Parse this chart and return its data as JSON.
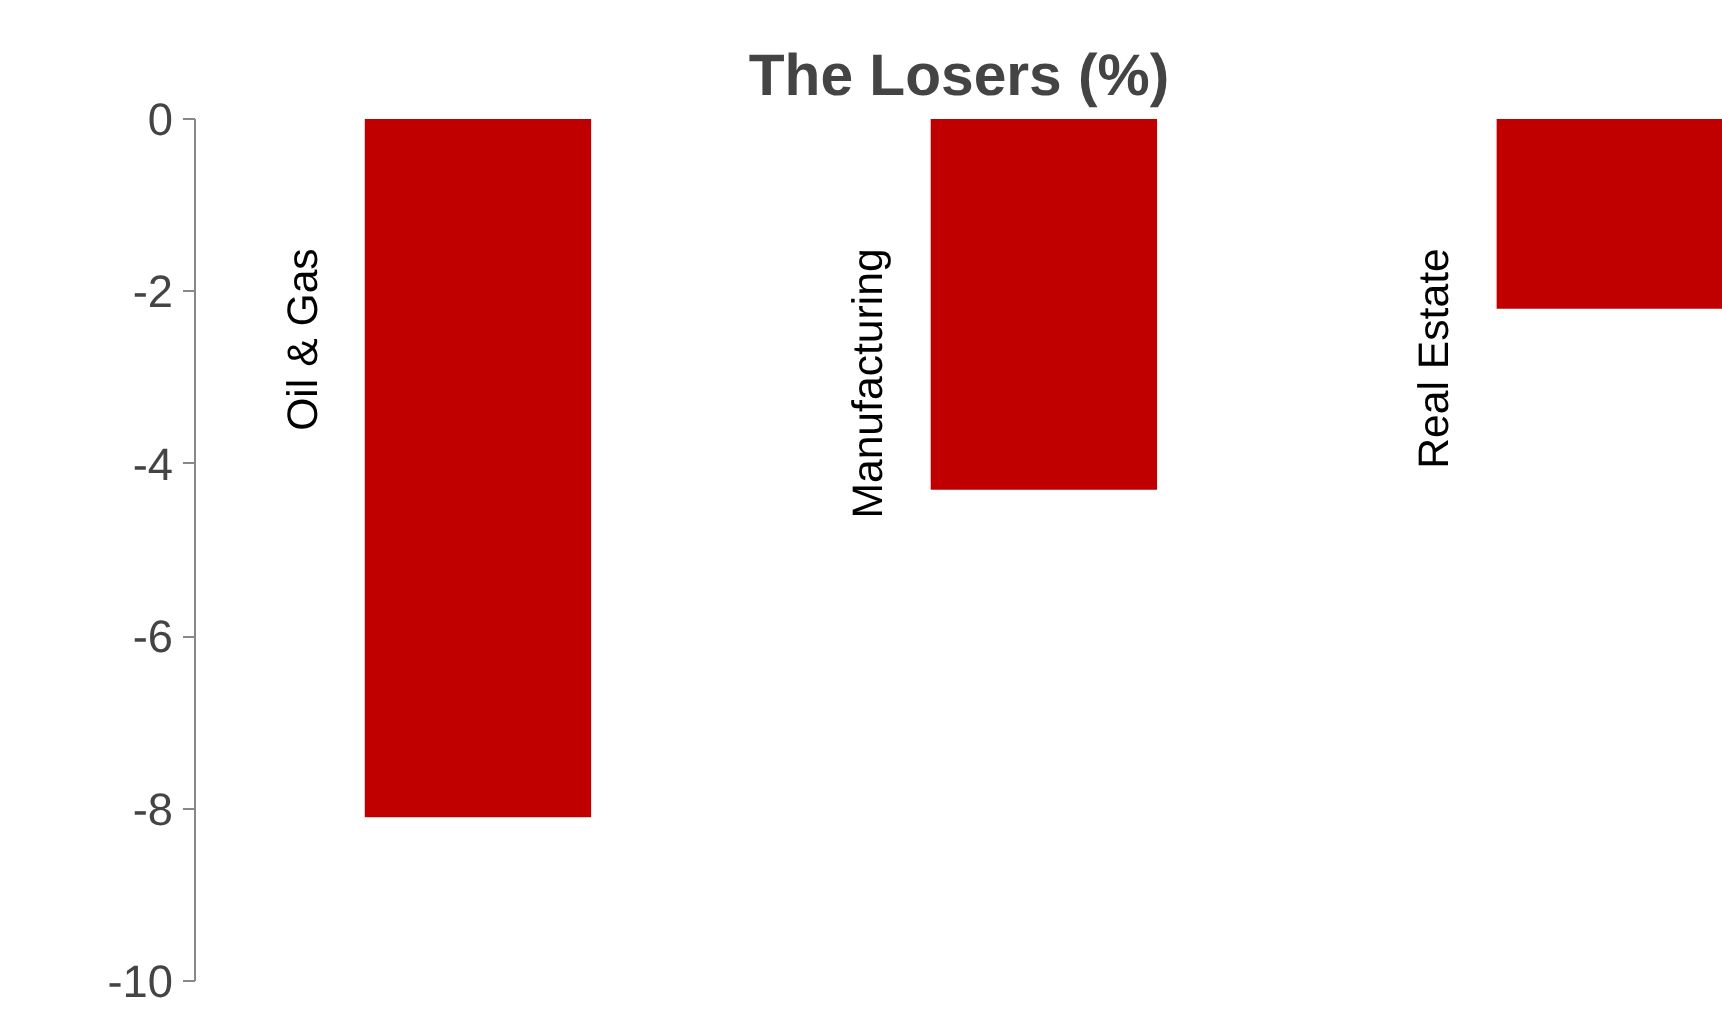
{
  "chart_data": {
    "type": "bar",
    "title": "The Losers (%)",
    "categories": [
      "Oil & Gas",
      "Manufacturing",
      "Real Estate"
    ],
    "values": [
      -8.1,
      -4.3,
      -2.2
    ],
    "color": "#c00000",
    "ylim": [
      -10,
      0
    ],
    "yticks": [
      -10,
      -8,
      -6,
      -4,
      -2,
      0
    ],
    "grid": false
  }
}
